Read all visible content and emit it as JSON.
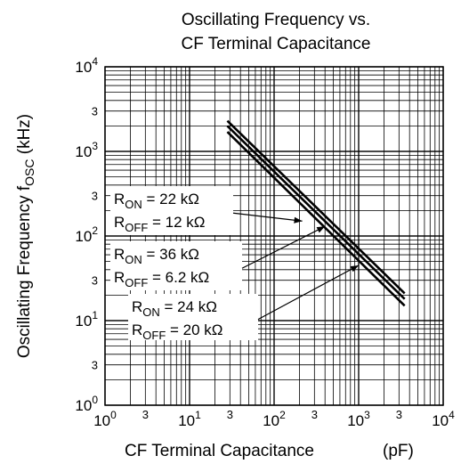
{
  "chart_data": {
    "type": "line",
    "title": "Oscillating Frequency vs.",
    "subtitle": "CF Terminal Capacitance",
    "xlabel": {
      "text": "CF Terminal Capacitance",
      "unit": "(pF)"
    },
    "ylabel": {
      "prefix": "Oscillating Frequency  f",
      "subscript": "OSC",
      "suffix": " (kHz)"
    },
    "xscale": "log",
    "yscale": "log",
    "xlim": [
      1,
      10000
    ],
    "ylim": [
      1,
      10000
    ],
    "grid": true,
    "x_ticks": [
      {
        "value": 1,
        "base": "10",
        "exp": "0"
      },
      {
        "value": 3,
        "label": "3"
      },
      {
        "value": 10,
        "base": "10",
        "exp": "1"
      },
      {
        "value": 30,
        "label": "3"
      },
      {
        "value": 100,
        "base": "10",
        "exp": "2"
      },
      {
        "value": 300,
        "label": "3"
      },
      {
        "value": 1000,
        "base": "10",
        "exp": "3"
      },
      {
        "value": 3000,
        "label": "3"
      },
      {
        "value": 10000,
        "base": "10",
        "exp": "4"
      }
    ],
    "y_ticks": [
      {
        "value": 1,
        "base": "10",
        "exp": "0"
      },
      {
        "value": 3,
        "label": "3"
      },
      {
        "value": 10,
        "base": "10",
        "exp": "1"
      },
      {
        "value": 30,
        "label": "3"
      },
      {
        "value": 100,
        "base": "10",
        "exp": "2"
      },
      {
        "value": 300,
        "label": "3"
      },
      {
        "value": 1000,
        "base": "10",
        "exp": "3"
      },
      {
        "value": 3000,
        "label": "3"
      },
      {
        "value": 10000,
        "base": "10",
        "exp": "4"
      }
    ],
    "series": [
      {
        "name_lines": [
          {
            "main": "R",
            "sub": "ON",
            "rest": " = 22 kΩ"
          },
          {
            "main": "R",
            "sub": "OFF",
            "rest": " = 12 kΩ"
          }
        ],
        "x": [
          28,
          3500
        ],
        "y": [
          2300,
          21
        ],
        "arrow_to": [
          215,
          150
        ]
      },
      {
        "name_lines": [
          {
            "main": "R",
            "sub": "ON",
            "rest": " = 36 kΩ"
          },
          {
            "main": "R",
            "sub": "OFF",
            "rest": " = 6.2 kΩ"
          }
        ],
        "x": [
          28,
          3500
        ],
        "y": [
          2000,
          18
        ],
        "arrow_to": [
          400,
          130
        ]
      },
      {
        "name_lines": [
          {
            "main": "R",
            "sub": "ON",
            "rest": " = 24 kΩ"
          },
          {
            "main": "R",
            "sub": "OFF",
            "rest": " = 20 kΩ"
          }
        ],
        "x": [
          28,
          3500
        ],
        "y": [
          1700,
          15
        ],
        "arrow_to": [
          1000,
          45
        ]
      }
    ],
    "colors": {
      "line": "#000000",
      "grid": "#000000",
      "background": "#ffffff"
    }
  }
}
